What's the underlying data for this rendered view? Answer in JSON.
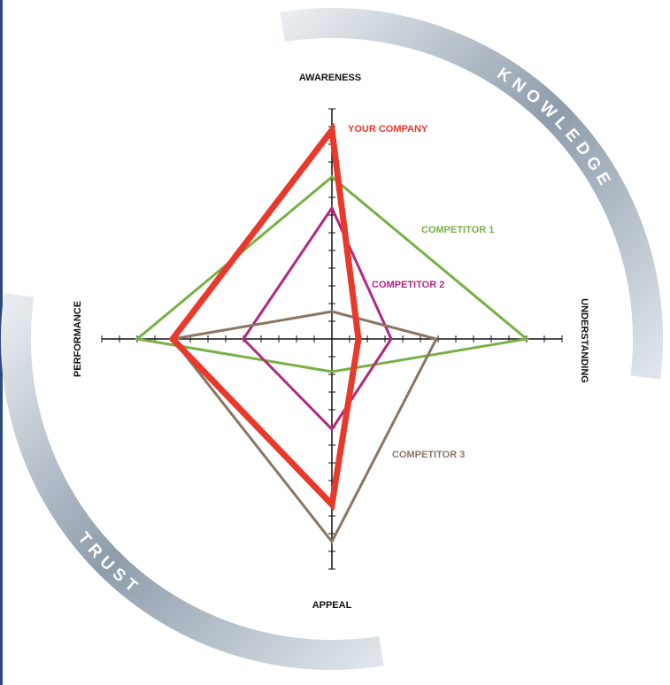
{
  "chart_data": {
    "type": "radar",
    "categories": [
      "AWARENESS",
      "UNDERSTANDING",
      "APPEAL",
      "PERFORMANCE"
    ],
    "series": [
      {
        "name": "YOUR COMPANY",
        "color": "#e8392a",
        "values": [
          11.8,
          1.5,
          9.35,
          9.0
        ]
      },
      {
        "name": "COMPETITOR 1",
        "color": "#78b044",
        "values": [
          9.15,
          11,
          1.85,
          11
        ]
      },
      {
        "name": "COMPETITOR 2",
        "color": "#b2287f",
        "values": [
          7.4,
          3.35,
          5.1,
          5
        ]
      },
      {
        "name": "COMPETITOR 3",
        "color": "#8a7561",
        "values": [
          1.55,
          5.9,
          11.45,
          9
        ]
      }
    ],
    "rlim": [
      0,
      13
    ],
    "rticks": [
      1,
      2,
      3,
      4,
      5,
      6,
      7,
      8,
      9,
      10,
      11,
      12,
      13
    ],
    "annotations": [
      "KNOWLEDGE",
      "TRUST"
    ]
  }
}
